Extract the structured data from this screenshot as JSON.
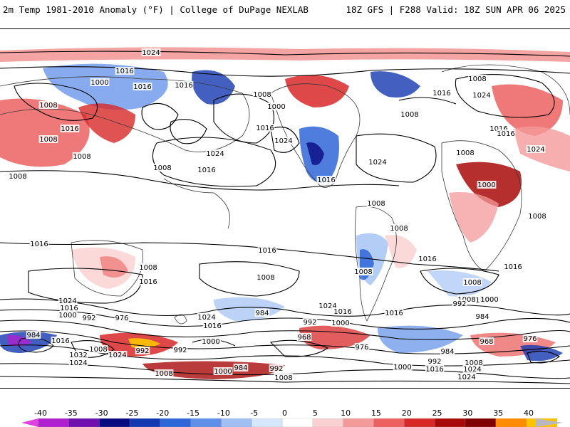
{
  "header": {
    "title_left": "2m Temp 1981-2010 Anomaly (°F) | College of DuPage NEXLAB",
    "title_right": "18Z GFS | F288 Valid: 18Z SUN APR 06 2025"
  },
  "colorbar": {
    "ticks": [
      "-40",
      "-35",
      "-30",
      "-25",
      "-20",
      "-15",
      "-10",
      "-5",
      "0",
      "5",
      "10",
      "15",
      "20",
      "25",
      "30",
      "35",
      "40"
    ],
    "colors": [
      "#e040e0",
      "#b020d0",
      "#7010b0",
      "#0a0a80",
      "#1438b0",
      "#2f66d8",
      "#5f8fe8",
      "#a0c0f4",
      "#d6e6fb",
      "#ffffff",
      "#fbd0d0",
      "#f49a9a",
      "#ec6060",
      "#d82828",
      "#a80a0a",
      "#800000",
      "#ff8c00",
      "#ffc400",
      "#b8b8c0"
    ]
  },
  "contour_labels": [
    {
      "text": "1024"
    },
    {
      "text": "1016"
    },
    {
      "text": "1000"
    },
    {
      "text": "1008"
    },
    {
      "text": "1016"
    },
    {
      "text": "1008"
    },
    {
      "text": "1016"
    },
    {
      "text": "1008"
    },
    {
      "text": "1016"
    },
    {
      "text": "1008"
    },
    {
      "text": "1024"
    },
    {
      "text": "1016"
    },
    {
      "text": "1024"
    },
    {
      "text": "1008"
    },
    {
      "text": "1000"
    },
    {
      "text": "1016"
    },
    {
      "text": "1024"
    },
    {
      "text": "1008"
    },
    {
      "text": "1016"
    },
    {
      "text": "1016"
    },
    {
      "text": "1024"
    },
    {
      "text": "1008"
    },
    {
      "text": "1008"
    },
    {
      "text": "1016"
    },
    {
      "text": "1024"
    },
    {
      "text": "1016"
    },
    {
      "text": "1008"
    },
    {
      "text": "1000"
    },
    {
      "text": "1008"
    },
    {
      "text": "1008"
    },
    {
      "text": "1008"
    },
    {
      "text": "1008"
    },
    {
      "text": "1016"
    },
    {
      "text": "1008"
    },
    {
      "text": "1016"
    },
    {
      "text": "1016"
    },
    {
      "text": "1016"
    },
    {
      "text": "1016"
    },
    {
      "text": "1008"
    },
    {
      "text": "1008"
    },
    {
      "text": "1008"
    },
    {
      "text": "1024"
    },
    {
      "text": "1016"
    },
    {
      "text": "1000"
    },
    {
      "text": "992"
    },
    {
      "text": "976"
    },
    {
      "text": "1024"
    },
    {
      "text": "1016"
    },
    {
      "text": "984"
    },
    {
      "text": "992"
    },
    {
      "text": "1000"
    },
    {
      "text": "1024"
    },
    {
      "text": "1016"
    },
    {
      "text": "1016"
    },
    {
      "text": "1008"
    },
    {
      "text": "1000"
    },
    {
      "text": "992"
    },
    {
      "text": "984"
    },
    {
      "text": "1008"
    },
    {
      "text": "984"
    },
    {
      "text": "1016"
    },
    {
      "text": "1032"
    },
    {
      "text": "1008"
    },
    {
      "text": "1024"
    },
    {
      "text": "1024"
    },
    {
      "text": "984"
    },
    {
      "text": "992"
    },
    {
      "text": "992"
    },
    {
      "text": "1000"
    },
    {
      "text": "968"
    },
    {
      "text": "976"
    },
    {
      "text": "984"
    },
    {
      "text": "968"
    },
    {
      "text": "976"
    },
    {
      "text": "1008"
    },
    {
      "text": "1016"
    },
    {
      "text": "1000"
    },
    {
      "text": "992"
    },
    {
      "text": "1008"
    },
    {
      "text": "1024"
    },
    {
      "text": "1024"
    },
    {
      "text": "1000"
    },
    {
      "text": "984"
    },
    {
      "text": "992"
    },
    {
      "text": "1008"
    }
  ]
}
